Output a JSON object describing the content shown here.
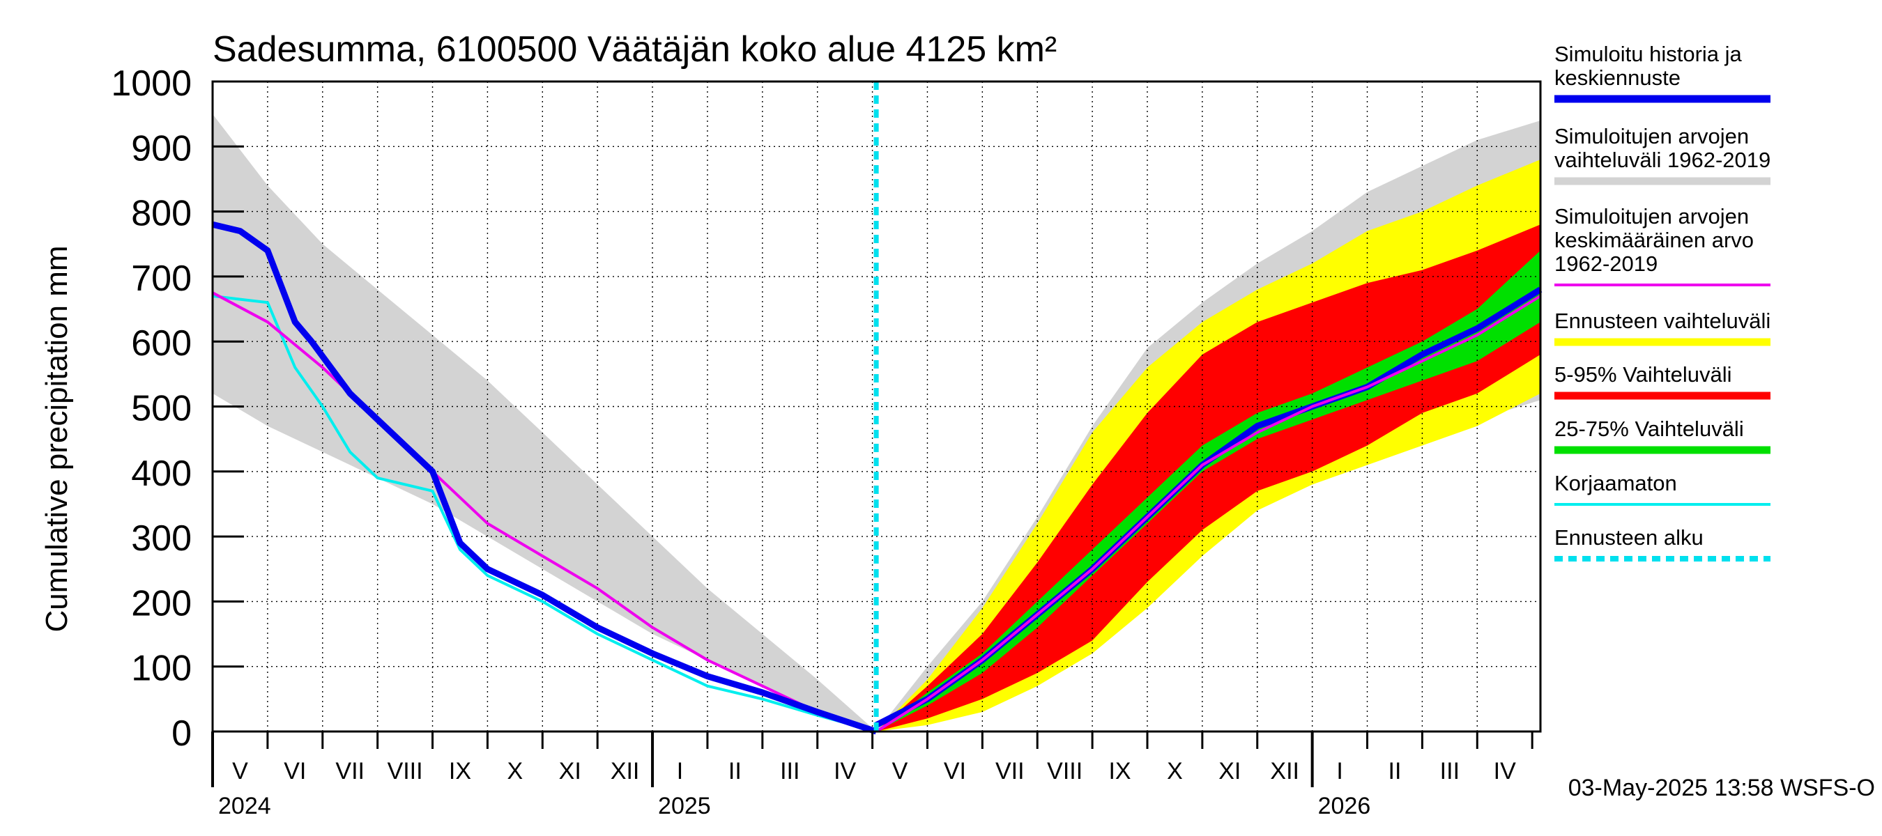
{
  "chart_data": {
    "type": "area",
    "title": "Sadesumma, 6100500 Väätäjän koko alue 4125 km²",
    "ylabel": "Cumulative precipitation   mm",
    "ylim": [
      0,
      1000
    ],
    "yticks": [
      0,
      100,
      200,
      300,
      400,
      500,
      600,
      700,
      800,
      900,
      1000
    ],
    "x_unit": "months since 2024-05-01",
    "xlim": [
      0,
      24.15
    ],
    "forecast_start": 12.07,
    "month_labels": [
      "V",
      "VI",
      "VII",
      "VIII",
      "IX",
      "X",
      "XI",
      "XII",
      "I",
      "II",
      "III",
      "IV",
      "V",
      "VI",
      "VII",
      "VIII",
      "IX",
      "X",
      "XI",
      "XII",
      "I",
      "II",
      "III",
      "IV"
    ],
    "year_labels": [
      {
        "label": "2024",
        "x": 0
      },
      {
        "label": "2025",
        "x": 8
      },
      {
        "label": "2026",
        "x": 20
      }
    ],
    "timestamp": "03-May-2025 13:58 WSFS-O",
    "colors": {
      "history": "#0000ee",
      "sim_range": "#d3d3d3",
      "sim_mean": "#ee00ee",
      "forecast_range": "#ffff00",
      "p5_95": "#ff0000",
      "p25_75": "#00e000",
      "uncorrected": "#00eeee",
      "forecast_start": "#00e0ee"
    },
    "legend": [
      {
        "label": "Simuloitu historia ja keskiennuste",
        "color": "#0000ee",
        "style": "solid"
      },
      {
        "label": "Simuloitujen arvojen vaihteluväli 1962-2019",
        "color": "#d3d3d3",
        "style": "solid"
      },
      {
        "label": "Simuloitujen arvojen keskimääräinen arvo    1962-2019",
        "color": "#ee00ee",
        "style": "thin"
      },
      {
        "label": "Ennusteen vaihteluväli",
        "color": "#ffff00",
        "style": "solid"
      },
      {
        "label": "5-95% Vaihteluväli",
        "color": "#ff0000",
        "style": "solid"
      },
      {
        "label": "25-75% Vaihteluväli",
        "color": "#00e000",
        "style": "solid"
      },
      {
        "label": "Korjaamaton",
        "color": "#00eeee",
        "style": "thin"
      },
      {
        "label": "Ennusteen alku",
        "color": "#00e0ee",
        "style": "dashed"
      }
    ],
    "series": [
      {
        "name": "Simuloitujen arvojen vaihteluväli 1962-2019 (lower, history)",
        "x": [
          0,
          1,
          2,
          3,
          4,
          5,
          6,
          7,
          8,
          9,
          10,
          11,
          12.07
        ],
        "values": [
          520,
          470,
          430,
          390,
          350,
          300,
          250,
          200,
          150,
          110,
          70,
          30,
          0
        ]
      },
      {
        "name": "Simuloitujen arvojen vaihteluväli 1962-2019 (upper, history)",
        "x": [
          0,
          1,
          2,
          3,
          4,
          5,
          6,
          7,
          8,
          9,
          10,
          11,
          12.07
        ],
        "values": [
          950,
          840,
          750,
          680,
          610,
          540,
          460,
          380,
          300,
          220,
          150,
          80,
          0
        ]
      },
      {
        "name": "Simuloitu historia",
        "x": [
          0,
          0.5,
          1,
          1.5,
          1.8,
          2.5,
          3,
          4,
          4.5,
          5,
          6,
          7,
          8,
          9,
          10,
          11,
          12.07
        ],
        "values": [
          780,
          770,
          740,
          630,
          600,
          520,
          480,
          400,
          290,
          250,
          210,
          160,
          120,
          85,
          60,
          30,
          0
        ]
      },
      {
        "name": "Simuloitujen arvojen keskimääräinen arvo 1962-2019 (history)",
        "x": [
          0,
          1,
          2,
          3,
          4,
          5,
          6,
          7,
          8,
          9,
          10,
          11,
          12.07
        ],
        "values": [
          675,
          630,
          560,
          480,
          400,
          320,
          270,
          220,
          160,
          110,
          70,
          30,
          0
        ]
      },
      {
        "name": "Korjaamaton",
        "x": [
          0,
          0.5,
          1,
          1.5,
          2,
          2.5,
          3,
          4,
          4.5,
          5,
          6,
          7,
          8,
          9,
          10,
          11,
          12.07
        ],
        "values": [
          670,
          665,
          660,
          560,
          500,
          430,
          390,
          370,
          280,
          240,
          200,
          150,
          110,
          70,
          50,
          25,
          0
        ]
      },
      {
        "name": "Simuloitujen arvojen vaihteluväli 1962-2019 (lower, forecast)",
        "x": [
          12.07,
          13,
          14,
          15,
          16,
          17,
          18,
          19,
          20,
          21,
          22,
          23,
          24.15
        ],
        "values": [
          0,
          20,
          40,
          80,
          120,
          200,
          280,
          350,
          390,
          420,
          450,
          480,
          510
        ]
      },
      {
        "name": "Simuloitujen arvojen vaihteluväli 1962-2019 (upper, forecast)",
        "x": [
          12.07,
          13,
          14,
          15,
          16,
          17,
          18,
          19,
          20,
          21,
          22,
          23,
          24.15
        ],
        "values": [
          0,
          100,
          200,
          330,
          470,
          590,
          660,
          720,
          770,
          830,
          870,
          910,
          940
        ]
      },
      {
        "name": "Ennusteen vaihteluväli (lower)",
        "x": [
          12.07,
          13,
          14,
          15,
          16,
          17,
          18,
          19,
          20,
          21,
          22,
          23,
          24.15
        ],
        "values": [
          0,
          10,
          30,
          70,
          120,
          190,
          270,
          340,
          380,
          410,
          440,
          470,
          520
        ]
      },
      {
        "name": "Ennusteen vaihteluväli (upper)",
        "x": [
          12.07,
          13,
          14,
          15,
          16,
          17,
          18,
          19,
          20,
          21,
          22,
          23,
          24.15
        ],
        "values": [
          0,
          80,
          190,
          320,
          460,
          560,
          630,
          680,
          720,
          770,
          800,
          840,
          880
        ]
      },
      {
        "name": "5-95% Vaihteluväli (lower)",
        "x": [
          12.07,
          13,
          14,
          15,
          16,
          17,
          18,
          19,
          20,
          21,
          22,
          23,
          24.15
        ],
        "values": [
          0,
          20,
          50,
          90,
          140,
          230,
          310,
          370,
          400,
          440,
          490,
          520,
          580
        ]
      },
      {
        "name": "5-95% Vaihteluväli (upper)",
        "x": [
          12.07,
          13,
          14,
          15,
          16,
          17,
          18,
          19,
          20,
          21,
          22,
          23,
          24.15
        ],
        "values": [
          0,
          70,
          150,
          260,
          380,
          490,
          580,
          630,
          660,
          690,
          710,
          740,
          780
        ]
      },
      {
        "name": "25-75% Vaihteluväli (lower)",
        "x": [
          12.07,
          13,
          14,
          15,
          16,
          17,
          18,
          19,
          20,
          21,
          22,
          23,
          24.15
        ],
        "values": [
          0,
          40,
          90,
          160,
          240,
          320,
          400,
          450,
          480,
          510,
          540,
          570,
          630
        ]
      },
      {
        "name": "25-75% Vaihteluväli (upper)",
        "x": [
          12.07,
          13,
          14,
          15,
          16,
          17,
          18,
          19,
          20,
          21,
          22,
          23,
          24.15
        ],
        "values": [
          0,
          60,
          120,
          200,
          280,
          360,
          440,
          490,
          520,
          560,
          600,
          650,
          740
        ]
      },
      {
        "name": "Keskiennuste",
        "x": [
          12.07,
          13,
          14,
          15,
          16,
          17,
          18,
          19,
          20,
          21,
          22,
          23,
          24.15
        ],
        "values": [
          10,
          50,
          110,
          180,
          250,
          330,
          410,
          470,
          500,
          530,
          580,
          620,
          680
        ]
      },
      {
        "name": "Simuloitujen arvojen keskimääräinen arvo 1962-2019 (forecast)",
        "x": [
          12.07,
          13,
          14,
          15,
          16,
          17,
          18,
          19,
          20,
          21,
          22,
          23,
          24.15
        ],
        "values": [
          0,
          50,
          110,
          180,
          250,
          330,
          410,
          460,
          500,
          530,
          570,
          610,
          670
        ]
      }
    ]
  }
}
